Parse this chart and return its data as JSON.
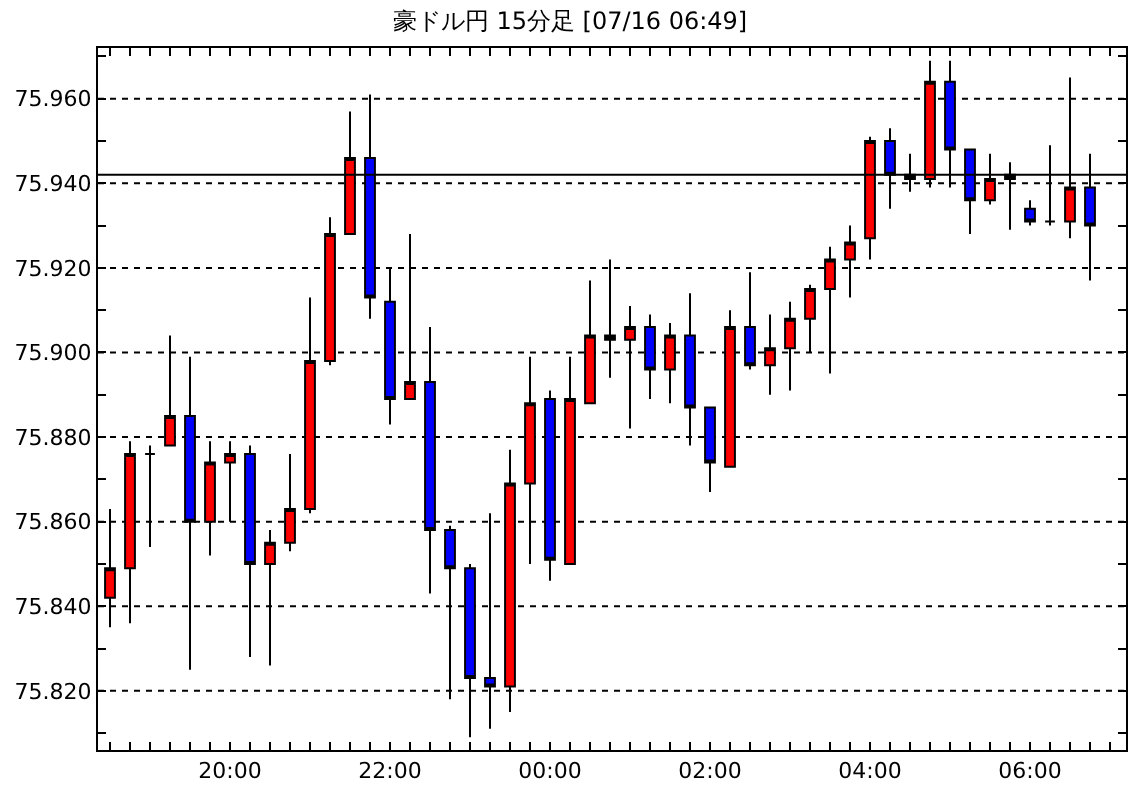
{
  "chart_data": {
    "type": "candlestick",
    "title": "豪ドル円 15分足 [07/16 06:49]",
    "x": [
      "--07-15T18:30",
      "--07-15T18:45",
      "--07-15T19:00",
      "--07-15T19:15",
      "--07-15T19:30",
      "--07-15T19:45",
      "--07-15T20:00",
      "--07-15T20:15",
      "--07-15T20:30",
      "--07-15T20:45",
      "--07-15T21:00",
      "--07-15T21:15",
      "--07-15T21:30",
      "--07-15T21:45",
      "--07-15T22:00",
      "--07-15T22:15",
      "--07-15T22:30",
      "--07-15T22:45",
      "--07-15T23:00",
      "--07-15T23:15",
      "--07-15T23:30",
      "--07-15T23:45",
      "--07-16T00:00",
      "--07-16T00:15",
      "--07-16T00:30",
      "--07-16T00:45",
      "--07-16T01:00",
      "--07-16T01:15",
      "--07-16T01:30",
      "--07-16T01:45",
      "--07-16T02:00",
      "--07-16T02:15",
      "--07-16T02:30",
      "--07-16T02:45",
      "--07-16T03:00",
      "--07-16T03:15",
      "--07-16T03:30",
      "--07-16T03:45",
      "--07-16T04:00",
      "--07-16T04:15",
      "--07-16T04:30",
      "--07-16T04:45",
      "--07-16T05:00",
      "--07-16T05:15",
      "--07-16T05:30",
      "--07-16T05:45",
      "--07-16T06:00",
      "--07-16T06:15",
      "--07-16T06:30",
      "--07-16T06:45"
    ],
    "ohlc": [
      [
        75.842,
        75.863,
        75.835,
        75.849
      ],
      [
        75.849,
        75.879,
        75.836,
        75.876
      ],
      [
        75.876,
        75.878,
        75.854,
        75.876
      ],
      [
        75.878,
        75.904,
        75.878,
        75.885
      ],
      [
        75.885,
        75.899,
        75.825,
        75.86
      ],
      [
        75.86,
        75.879,
        75.852,
        75.874
      ],
      [
        75.874,
        75.879,
        75.86,
        75.876
      ],
      [
        75.876,
        75.878,
        75.828,
        75.85
      ],
      [
        75.85,
        75.858,
        75.826,
        75.855
      ],
      [
        75.855,
        75.876,
        75.853,
        75.863
      ],
      [
        75.863,
        75.913,
        75.862,
        75.898
      ],
      [
        75.898,
        75.932,
        75.897,
        75.928
      ],
      [
        75.928,
        75.957,
        75.928,
        75.946
      ],
      [
        75.946,
        75.961,
        75.908,
        75.913
      ],
      [
        75.912,
        75.92,
        75.883,
        75.889
      ],
      [
        75.889,
        75.928,
        75.889,
        75.893
      ],
      [
        75.893,
        75.906,
        75.843,
        75.858
      ],
      [
        75.858,
        75.859,
        75.818,
        75.849
      ],
      [
        75.849,
        75.85,
        75.809,
        75.823
      ],
      [
        75.823,
        75.862,
        75.811,
        75.821
      ],
      [
        75.821,
        75.877,
        75.815,
        75.869
      ],
      [
        75.869,
        75.899,
        75.85,
        75.888
      ],
      [
        75.889,
        75.891,
        75.846,
        75.851
      ],
      [
        75.85,
        75.899,
        75.85,
        75.889
      ],
      [
        75.888,
        75.917,
        75.888,
        75.904
      ],
      [
        75.904,
        75.922,
        75.894,
        75.903
      ],
      [
        75.903,
        75.911,
        75.882,
        75.906
      ],
      [
        75.906,
        75.909,
        75.889,
        75.896
      ],
      [
        75.896,
        75.907,
        75.888,
        75.904
      ],
      [
        75.904,
        75.914,
        75.878,
        75.887
      ],
      [
        75.887,
        75.887,
        75.867,
        75.874
      ],
      [
        75.873,
        75.91,
        75.873,
        75.906
      ],
      [
        75.906,
        75.919,
        75.896,
        75.897
      ],
      [
        75.897,
        75.909,
        75.89,
        75.901
      ],
      [
        75.901,
        75.912,
        75.891,
        75.908
      ],
      [
        75.908,
        75.916,
        75.9,
        75.915
      ],
      [
        75.915,
        75.925,
        75.895,
        75.922
      ],
      [
        75.922,
        75.93,
        75.913,
        75.926
      ],
      [
        75.927,
        75.951,
        75.922,
        75.95
      ],
      [
        75.95,
        75.953,
        75.934,
        75.942
      ],
      [
        75.942,
        75.947,
        75.938,
        75.941
      ],
      [
        75.941,
        75.969,
        75.939,
        75.964
      ],
      [
        75.964,
        75.969,
        75.939,
        75.948
      ],
      [
        75.948,
        75.948,
        75.928,
        75.936
      ],
      [
        75.936,
        75.947,
        75.935,
        75.941
      ],
      [
        75.941,
        75.945,
        75.929,
        75.942
      ],
      [
        75.934,
        75.936,
        75.93,
        75.931
      ],
      [
        75.931,
        75.949,
        75.93,
        75.931
      ],
      [
        75.931,
        75.965,
        75.927,
        75.939
      ],
      [
        75.939,
        75.947,
        75.917,
        75.93
      ]
    ],
    "colors": [
      "#ff0000",
      "#ff0000",
      "#000000",
      "#ff0000",
      "#0000ff",
      "#ff0000",
      "#ff0000",
      "#0000ff",
      "#ff0000",
      "#ff0000",
      "#ff0000",
      "#ff0000",
      "#ff0000",
      "#0000ff",
      "#0000ff",
      "#ff0000",
      "#0000ff",
      "#0000ff",
      "#0000ff",
      "#0000ff",
      "#ff0000",
      "#ff0000",
      "#0000ff",
      "#ff0000",
      "#ff0000",
      "#000000",
      "#ff0000",
      "#0000ff",
      "#ff0000",
      "#0000ff",
      "#0000ff",
      "#ff0000",
      "#0000ff",
      "#ff0000",
      "#ff0000",
      "#ff0000",
      "#ff0000",
      "#ff0000",
      "#ff0000",
      "#0000ff",
      "#000000",
      "#ff0000",
      "#0000ff",
      "#0000ff",
      "#ff0000",
      "#000000",
      "#0000ff",
      "#000000",
      "#ff0000",
      "#0000ff"
    ],
    "xlim": [
      "--07-15T18:21",
      "--07-16T07:12"
    ],
    "xticks": [
      {
        "value": "--07-15T18:30",
        "label": null
      },
      {
        "value": "--07-15T18:45",
        "label": null
      },
      {
        "value": "--07-15T19:00",
        "label": null
      },
      {
        "value": "--07-15T19:15",
        "label": null
      },
      {
        "value": "--07-15T19:30",
        "label": null
      },
      {
        "value": "--07-15T19:45",
        "label": null
      },
      {
        "value": "--07-15T20:00",
        "label": "20:00"
      },
      {
        "value": "--07-15T20:15",
        "label": null
      },
      {
        "value": "--07-15T20:30",
        "label": null
      },
      {
        "value": "--07-15T20:45",
        "label": null
      },
      {
        "value": "--07-15T21:00",
        "label": null
      },
      {
        "value": "--07-15T21:15",
        "label": null
      },
      {
        "value": "--07-15T21:30",
        "label": null
      },
      {
        "value": "--07-15T21:45",
        "label": null
      },
      {
        "value": "--07-15T22:00",
        "label": "22:00"
      },
      {
        "value": "--07-15T22:15",
        "label": null
      },
      {
        "value": "--07-15T22:30",
        "label": null
      },
      {
        "value": "--07-15T22:45",
        "label": null
      },
      {
        "value": "--07-15T23:00",
        "label": null
      },
      {
        "value": "--07-15T23:15",
        "label": null
      },
      {
        "value": "--07-15T23:30",
        "label": null
      },
      {
        "value": "--07-15T23:45",
        "label": null
      },
      {
        "value": "--07-16T00:00",
        "label": "00:00"
      },
      {
        "value": "--07-16T00:15",
        "label": null
      },
      {
        "value": "--07-16T00:30",
        "label": null
      },
      {
        "value": "--07-16T00:45",
        "label": null
      },
      {
        "value": "--07-16T01:00",
        "label": null
      },
      {
        "value": "--07-16T01:15",
        "label": null
      },
      {
        "value": "--07-16T01:30",
        "label": null
      },
      {
        "value": "--07-16T01:45",
        "label": null
      },
      {
        "value": "--07-16T02:00",
        "label": "02:00"
      },
      {
        "value": "--07-16T02:15",
        "label": null
      },
      {
        "value": "--07-16T02:30",
        "label": null
      },
      {
        "value": "--07-16T02:45",
        "label": null
      },
      {
        "value": "--07-16T03:00",
        "label": null
      },
      {
        "value": "--07-16T03:15",
        "label": null
      },
      {
        "value": "--07-16T03:30",
        "label": null
      },
      {
        "value": "--07-16T03:45",
        "label": null
      },
      {
        "value": "--07-16T04:00",
        "label": "04:00"
      },
      {
        "value": "--07-16T04:15",
        "label": null
      },
      {
        "value": "--07-16T04:30",
        "label": null
      },
      {
        "value": "--07-16T04:45",
        "label": null
      },
      {
        "value": "--07-16T05:00",
        "label": null
      },
      {
        "value": "--07-16T05:15",
        "label": null
      },
      {
        "value": "--07-16T05:30",
        "label": null
      },
      {
        "value": "--07-16T05:45",
        "label": null
      },
      {
        "value": "--07-16T06:00",
        "label": "06:00"
      },
      {
        "value": "--07-16T06:15",
        "label": null
      },
      {
        "value": "--07-16T06:30",
        "label": null
      },
      {
        "value": "--07-16T06:45",
        "label": null
      },
      {
        "value": "--07-16T07:00",
        "label": null
      }
    ],
    "ylim": [
      75.806,
      75.972
    ],
    "yticks": [
      {
        "value": 75.81,
        "label": null
      },
      {
        "value": 75.82,
        "label": "75.820"
      },
      {
        "value": 75.83,
        "label": null
      },
      {
        "value": 75.84,
        "label": "75.840"
      },
      {
        "value": 75.85,
        "label": null
      },
      {
        "value": 75.86,
        "label": "75.860"
      },
      {
        "value": 75.87,
        "label": null
      },
      {
        "value": 75.88,
        "label": "75.880"
      },
      {
        "value": 75.89,
        "label": null
      },
      {
        "value": 75.9,
        "label": "75.900"
      },
      {
        "value": 75.91,
        "label": null
      },
      {
        "value": 75.92,
        "label": "75.920"
      },
      {
        "value": 75.93,
        "label": null
      },
      {
        "value": 75.94,
        "label": "75.940"
      },
      {
        "value": 75.95,
        "label": null
      },
      {
        "value": 75.96,
        "label": "75.960"
      },
      {
        "value": 75.97,
        "label": null
      }
    ],
    "grid": "y",
    "ref_lines": [
      {
        "axis": "y",
        "value": 75.942,
        "label": null,
        "color": "#000000",
        "line_style": "solid"
      }
    ]
  }
}
